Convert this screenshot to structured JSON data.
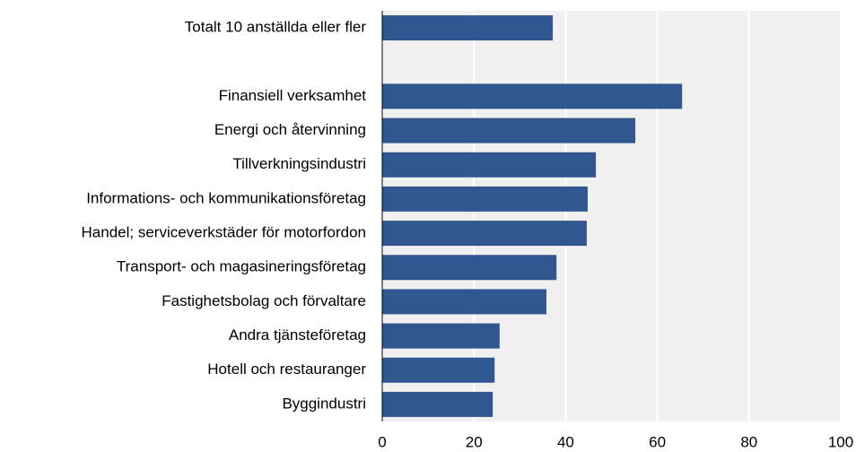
{
  "chart_data": {
    "type": "barh",
    "categories": [
      "Totalt 10 anställda eller fler",
      null,
      "Finansiell verksamhet",
      "Energi och återvinning",
      "Tillverkningsindustri",
      "Informations- och kommunikationsföretag",
      "Handel; serviceverkstäder för motorfordon",
      "Transport- och magasineringsföretag",
      "Fastighetsbolag och förvaltare",
      "Andra tjänsteföretag",
      "Hotell och restauranger",
      "Byggindustri"
    ],
    "values": [
      37.2,
      null,
      65.4,
      55.2,
      46.6,
      44.8,
      44.6,
      38,
      35.8,
      25.6,
      24.5,
      24.1
    ],
    "color": "#30578f",
    "xlim": [
      0,
      100
    ],
    "xticks": [
      0,
      20,
      40,
      60,
      80,
      100
    ],
    "grid": true
  }
}
